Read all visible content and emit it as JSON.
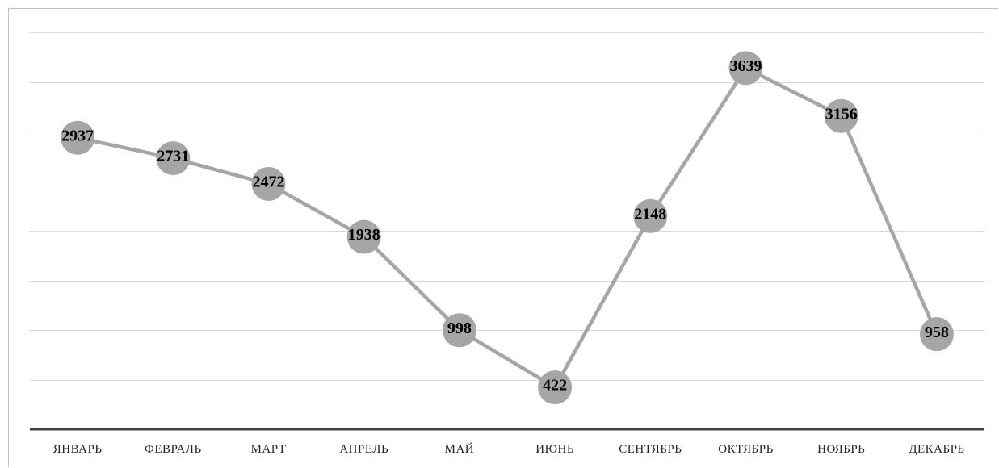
{
  "chart_data": {
    "type": "line",
    "categories": [
      "ЯНВАРЬ",
      "ФЕВРАЛЬ",
      "МАРТ",
      "АПРЕЛЬ",
      "МАЙ",
      "ИЮНЬ",
      "СЕНТЯБРЬ",
      "ОКТЯБРЬ",
      "НОЯБРЬ",
      "ДЕКАБРЬ"
    ],
    "series": [
      {
        "values": [
          2937,
          2731,
          2472,
          1938,
          998,
          422,
          2148,
          3639,
          3156,
          958
        ]
      }
    ],
    "ylim": [
      0,
      4000
    ],
    "grid": true,
    "legend": "none",
    "colors": {
      "line": "#a6a6a6",
      "marker": "#a6a6a6",
      "grid": "#d9d9d9",
      "axis": "#404040"
    }
  }
}
